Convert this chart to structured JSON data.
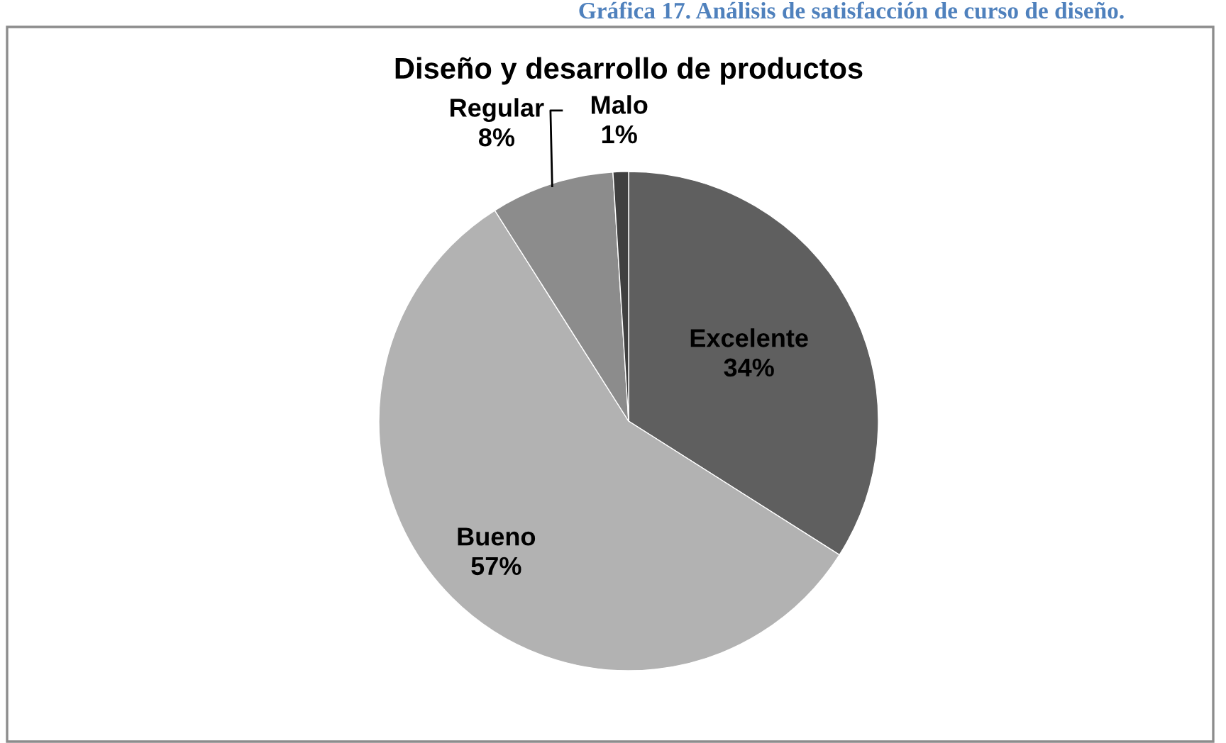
{
  "chart_data": {
    "type": "pie",
    "title": "Diseño y desarrollo de productos",
    "annotations": [
      "Gráfica 17. Análisis de satisfacción de curso de diseño."
    ],
    "categories": [
      "Excelente",
      "Bueno",
      "Regular",
      "Malo"
    ],
    "values": [
      34,
      57,
      8,
      1
    ],
    "colors": [
      "#5f5f5f",
      "#b2b2b2",
      "#8c8c8c",
      "#404040"
    ],
    "value_labels": [
      "34%",
      "57%",
      "8%",
      "1%"
    ],
    "legend": false
  }
}
